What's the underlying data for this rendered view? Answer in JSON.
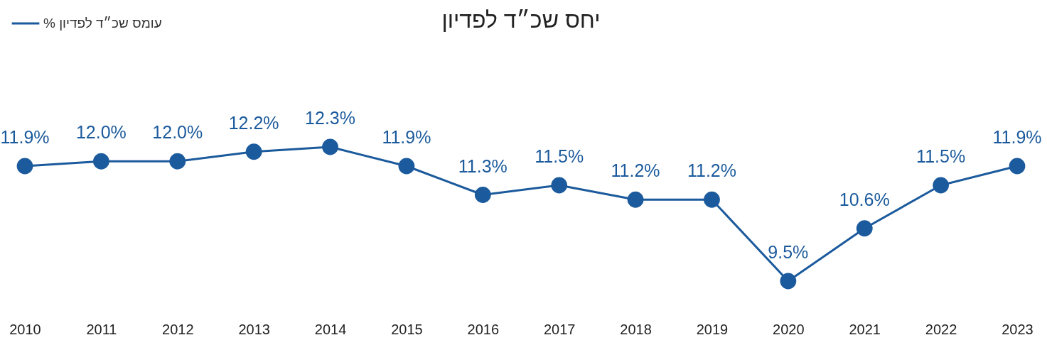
{
  "chart_data": {
    "type": "line",
    "title": "יחס שכ״ד לפדיון",
    "legend": "top left",
    "marker": "circle",
    "tick_labels": "x",
    "categories": [
      "2010",
      "2011",
      "2012",
      "2013",
      "2014",
      "2015",
      "2016",
      "2017",
      "2018",
      "2019",
      "2020",
      "2021",
      "2022",
      "2023"
    ],
    "series": [
      {
        "name": "% עומס שכ״ד לפדיון",
        "color": "#1b5a9c",
        "values": [
          11.9,
          12.0,
          12.0,
          12.2,
          12.3,
          11.9,
          11.3,
          11.5,
          11.2,
          11.2,
          9.5,
          10.6,
          11.5,
          11.9
        ],
        "value_labels": [
          "11.9%",
          "12.0%",
          "12.0%",
          "12.2%",
          "12.3%",
          "11.9%",
          "11.3%",
          "11.5%",
          "11.2%",
          "11.2%",
          "9.5%",
          "10.6%",
          "11.5%",
          "11.9%"
        ]
      }
    ]
  }
}
